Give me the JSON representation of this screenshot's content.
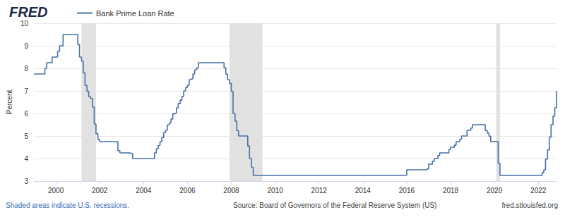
{
  "chart_data": {
    "type": "line",
    "title": "FRED",
    "y_label": "Percent",
    "line_style": "step",
    "grid": true,
    "legend": "upper left",
    "xlim": [
      1999,
      2022.83
    ],
    "xticks": [
      2000,
      2002,
      2004,
      2006,
      2008,
      2010,
      2012,
      2014,
      2016,
      2018,
      2020,
      2022
    ],
    "ylim": [
      3,
      10
    ],
    "yticks": [
      3,
      4,
      5,
      6,
      7,
      8,
      9,
      10
    ],
    "recessions": [
      [
        2001.17,
        2001.83
      ],
      [
        2007.92,
        2009.42
      ],
      [
        2020.08,
        2020.25
      ]
    ],
    "annotations": [
      "Shaded areas indicate U.S. recessions.",
      "Source: Board of Governors of the Federal Reserve System (US)",
      "fred.stlouisfed.org"
    ],
    "series": [
      {
        "name": "Bank Prime Loan Rate",
        "color": "#4572a7",
        "x": [
          1999.0,
          1999.5,
          1999.58,
          1999.83,
          2000.08,
          2000.17,
          2000.33,
          2001.0,
          2001.08,
          2001.17,
          2001.25,
          2001.33,
          2001.42,
          2001.5,
          2001.58,
          2001.67,
          2001.75,
          2001.83,
          2001.92,
          2002.0,
          2002.83,
          2002.92,
          2003.42,
          2003.5,
          2004.5,
          2004.58,
          2004.67,
          2004.75,
          2004.83,
          2004.92,
          2005.0,
          2005.08,
          2005.17,
          2005.25,
          2005.33,
          2005.42,
          2005.5,
          2005.58,
          2005.67,
          2005.75,
          2005.83,
          2005.92,
          2006.0,
          2006.08,
          2006.17,
          2006.25,
          2006.33,
          2006.42,
          2006.5,
          2007.67,
          2007.75,
          2007.83,
          2007.92,
          2008.0,
          2008.08,
          2008.17,
          2008.25,
          2008.33,
          2008.75,
          2008.83,
          2008.92,
          2009.0,
          2015.92,
          2016.0,
          2016.92,
          2017.0,
          2017.17,
          2017.25,
          2017.42,
          2017.5,
          2017.92,
          2018.0,
          2018.17,
          2018.25,
          2018.42,
          2018.5,
          2018.75,
          2018.92,
          2019.0,
          2019.58,
          2019.67,
          2019.75,
          2019.83,
          2020.17,
          2020.25,
          2022.17,
          2022.25,
          2022.33,
          2022.42,
          2022.5,
          2022.58,
          2022.67,
          2022.75,
          2022.83
        ],
        "values": [
          7.75,
          8.0,
          8.25,
          8.5,
          8.75,
          9.0,
          9.5,
          9.05,
          8.5,
          8.32,
          7.8,
          7.24,
          6.98,
          6.75,
          6.67,
          6.28,
          5.53,
          5.1,
          4.84,
          4.75,
          4.35,
          4.25,
          4.22,
          4.0,
          4.25,
          4.43,
          4.58,
          4.75,
          4.93,
          5.15,
          5.25,
          5.49,
          5.58,
          5.75,
          5.98,
          6.01,
          6.25,
          6.44,
          6.59,
          6.75,
          7.0,
          7.15,
          7.26,
          7.5,
          7.53,
          7.75,
          7.93,
          8.02,
          8.25,
          8.03,
          7.74,
          7.5,
          7.33,
          6.98,
          6.0,
          5.66,
          5.24,
          5.0,
          4.56,
          4.0,
          3.61,
          3.25,
          3.26,
          3.5,
          3.54,
          3.75,
          3.88,
          4.0,
          4.13,
          4.25,
          4.4,
          4.5,
          4.59,
          4.75,
          4.86,
          5.0,
          5.25,
          5.35,
          5.5,
          5.25,
          5.13,
          4.99,
          4.75,
          3.78,
          3.25,
          3.37,
          3.5,
          3.98,
          4.38,
          4.95,
          5.5,
          5.88,
          6.25,
          7.0
        ]
      }
    ]
  }
}
